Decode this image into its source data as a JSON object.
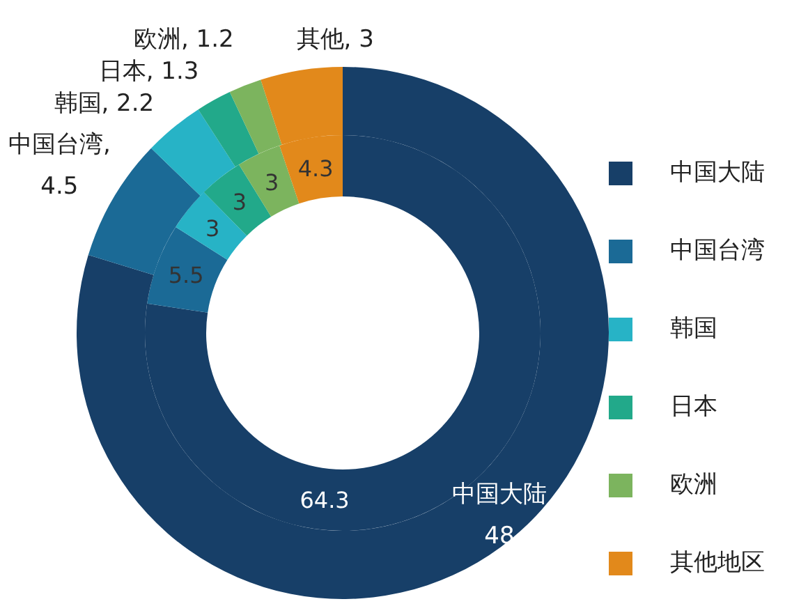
{
  "chart_data": [
    {
      "type": "donut",
      "categories": [
        "中国大陆",
        "中国台湾",
        "韩国",
        "日本",
        "欧洲",
        "其他地区"
      ],
      "colors": [
        "#173f68",
        "#1b6a96",
        "#27b3c6",
        "#22a98a",
        "#7cb45e",
        "#e2891b"
      ],
      "legend": "right",
      "values": [
        48,
        4.5,
        2.2,
        1.3,
        1.2,
        3
      ],
      "value_labels": [
        "中国大陆 48",
        "中国台湾, 4.5",
        "韩国, 2.2",
        "日本, 1.3",
        "欧洲, 1.2",
        "其他, 3"
      ]
    },
    {
      "type": "donut",
      "categories": [
        null,
        null,
        null,
        null,
        null,
        null
      ],
      "colors": [
        "#173f68",
        "#1b6a96",
        "#27b3c6",
        "#22a98a",
        "#7cb45e",
        "#e2891b"
      ],
      "values": [
        64.3,
        5.5,
        3,
        3,
        3,
        4.3
      ],
      "value_labels": [
        "64.3",
        "5.5",
        "3",
        "3",
        "3",
        "4.3"
      ]
    }
  ]
}
